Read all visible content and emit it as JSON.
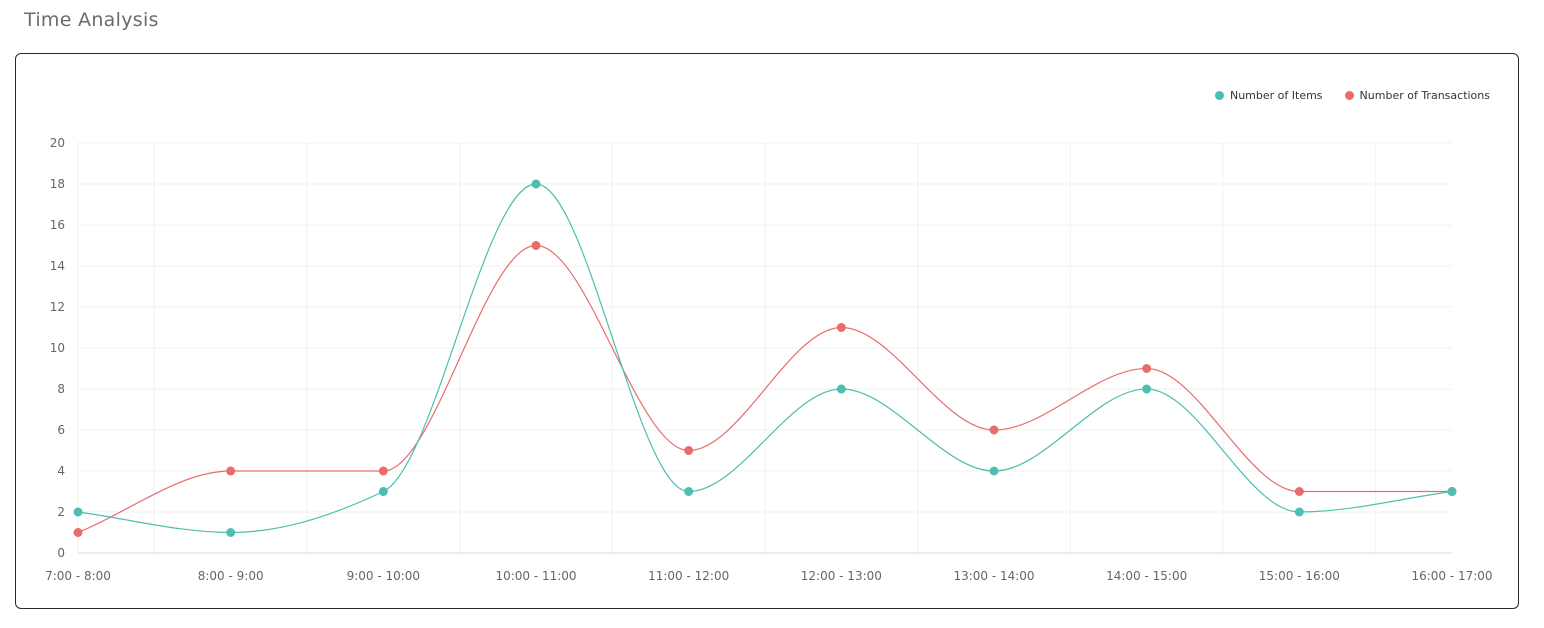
{
  "page": {
    "title": "Time Analysis"
  },
  "chart_data": {
    "type": "line",
    "title": "",
    "xlabel": "",
    "ylabel": "",
    "categories": [
      "7:00 - 8:00",
      "8:00 - 9:00",
      "9:00 - 10:00",
      "10:00 - 11:00",
      "11:00 - 12:00",
      "12:00 - 13:00",
      "13:00 - 14:00",
      "14:00 - 15:00",
      "15:00 - 16:00",
      "16:00 - 17:00"
    ],
    "ylim": [
      0,
      20
    ],
    "yticks": [
      0,
      2,
      4,
      6,
      8,
      10,
      12,
      14,
      16,
      18,
      20
    ],
    "grid": true,
    "legend_position": "top-right",
    "series": [
      {
        "name": "Number of Items",
        "color": "#4dbfb0",
        "values": [
          2,
          1,
          3,
          18,
          3,
          8,
          4,
          8,
          2,
          3
        ]
      },
      {
        "name": "Number of Transactions",
        "color": "#e96c6c",
        "values": [
          1,
          4,
          4,
          15,
          5,
          11,
          6,
          9,
          3,
          3
        ]
      }
    ]
  }
}
